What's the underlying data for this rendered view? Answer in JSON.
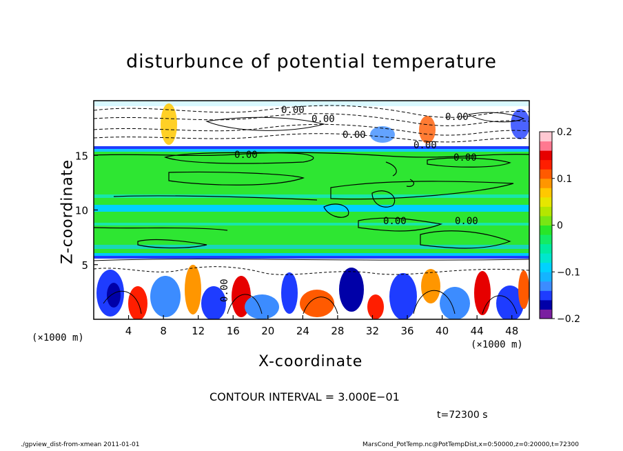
{
  "title": "disturbunce of potential temperature",
  "x_unit_left": "(×1000 m)",
  "x_unit_right": "(×1000 m)",
  "contour_interval": "CONTOUR INTERVAL = 3.000E−01",
  "timestamp": "t=72300 s",
  "footer_left": "./gpview_dist-from-xmean   2011-01-01",
  "footer_right": "MarsCond_PotTemp.nc@PotTempDist,x=0:50000,z=0:20000,t=72300",
  "chart_data": {
    "type": "heatmap",
    "title": "disturbunce of potential temperature",
    "xlabel": "X-coordinate",
    "ylabel": "Z-coordinate",
    "xlim": [
      0,
      50
    ],
    "ylim": [
      0,
      20
    ],
    "x_ticks": [
      4,
      8,
      12,
      16,
      20,
      24,
      28,
      32,
      36,
      40,
      44,
      48
    ],
    "y_ticks": [
      5,
      10,
      15
    ],
    "contour_labels": [
      "0.00",
      "0.00",
      "0.00",
      "0.00",
      "0.00",
      "0.00",
      "0.00",
      "0.00",
      "0.00",
      "0.00"
    ],
    "colorbar": {
      "range": [
        -0.2,
        0.2
      ],
      "ticks": [
        "0.2",
        "0.1",
        "0",
        "−0.1",
        "−0.2"
      ],
      "colors": [
        "#7a1fa0",
        "#0000a8",
        "#1e3cff",
        "#3c8cff",
        "#14b4ff",
        "#00d2ff",
        "#00e6cd",
        "#00eba0",
        "#14eb64",
        "#28e628",
        "#78e614",
        "#b4e600",
        "#e6e600",
        "#ffc800",
        "#ff9600",
        "#ff5a00",
        "#ff1e00",
        "#e60000",
        "#ff7890",
        "#ffc8d2"
      ]
    }
  }
}
